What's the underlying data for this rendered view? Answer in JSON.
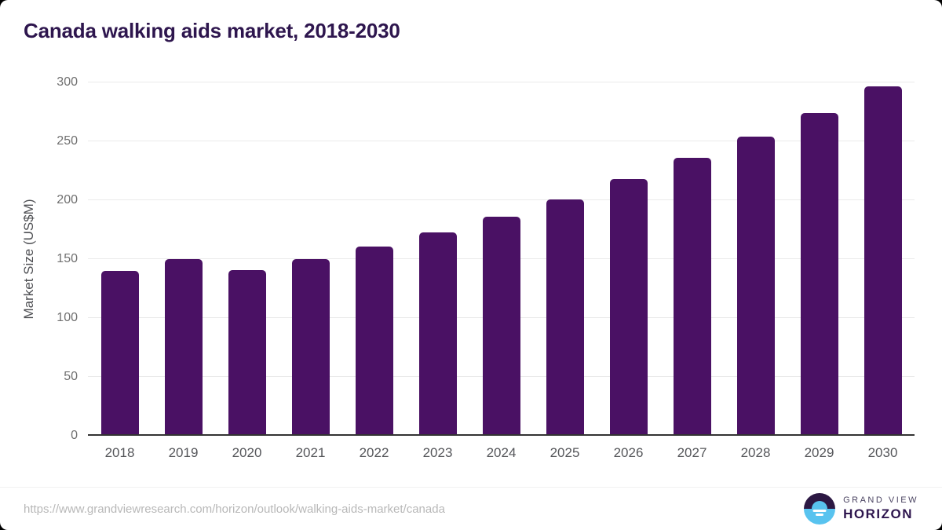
{
  "title": "Canada walking aids market, 2018-2030",
  "chart_data": {
    "type": "bar",
    "title": "Canada walking aids market, 2018-2030",
    "categories": [
      "2018",
      "2019",
      "2020",
      "2021",
      "2022",
      "2023",
      "2024",
      "2025",
      "2026",
      "2027",
      "2028",
      "2029",
      "2030"
    ],
    "values": [
      140,
      150,
      141,
      150,
      161,
      173,
      186,
      201,
      218,
      236,
      254,
      274,
      297
    ],
    "xlabel": "",
    "ylabel": "Market Size (US$M)",
    "ylim": [
      0,
      300
    ],
    "yticks": [
      0,
      50,
      100,
      150,
      200,
      250,
      300
    ],
    "grid": true,
    "legend": false,
    "bar_color": "#4a1164"
  },
  "footer": {
    "source_url": "https://www.grandviewresearch.com/horizon/outlook/walking-aids-market/canada",
    "logo": {
      "line1": "GRAND VIEW",
      "line2": "HORIZON",
      "icon": "horizon-sunrise-icon"
    }
  },
  "colors": {
    "bar": "#4a1164",
    "title": "#2e164e",
    "grid": "#eaeaea",
    "axis_line": "#333333",
    "ytick_label": "#707070",
    "xtick_label": "#55565a",
    "axis_title": "#4f5054",
    "url_text": "#b8b8b8",
    "logo_blue": "#58c3ef",
    "logo_dark": "#2c1843",
    "logo_name": "#4b4462",
    "card_bg": "#ffffff",
    "page_bg": "#000000"
  }
}
